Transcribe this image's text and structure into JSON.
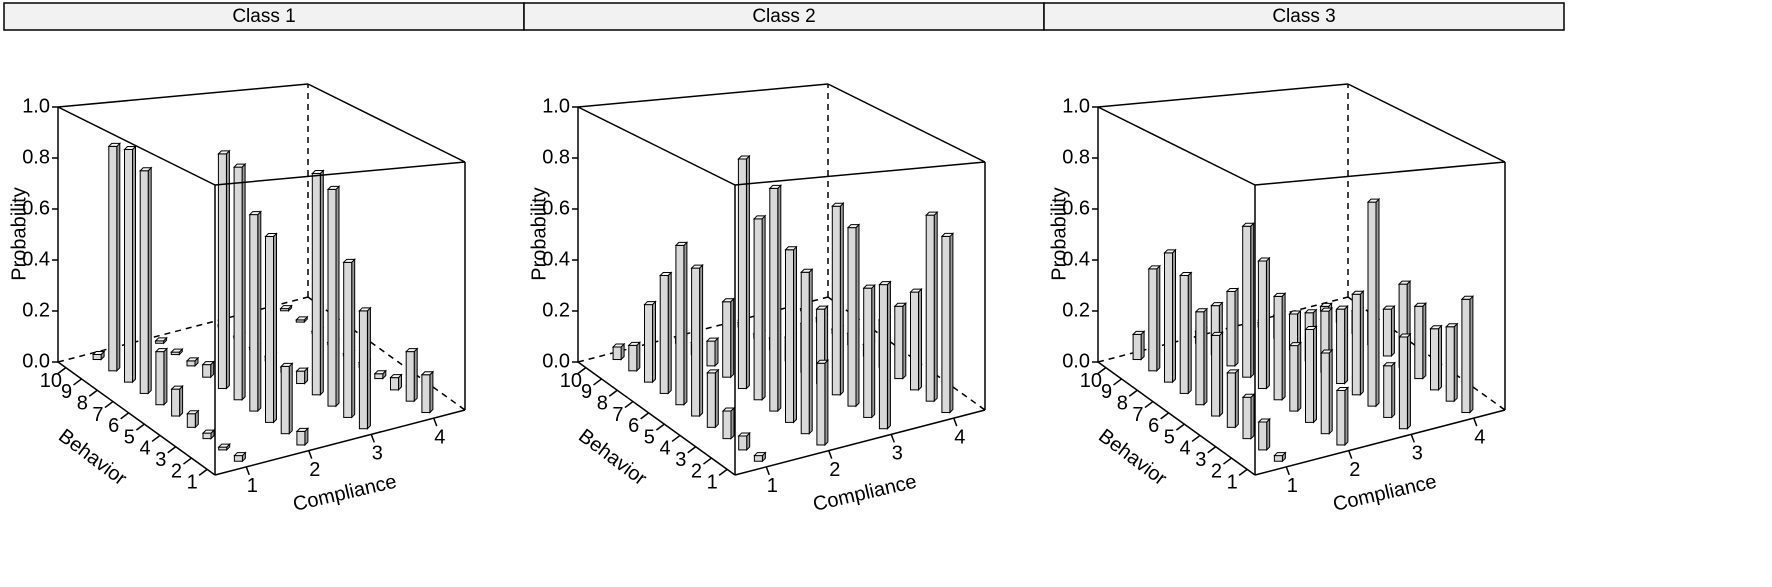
{
  "chart_data": [
    {
      "type": "bar3d",
      "title": "Class 1",
      "x_label": "Compliance",
      "y_label": "Behavior",
      "z_label": "Probability",
      "x_categories": [
        1,
        2,
        3,
        4
      ],
      "y_categories": [
        1,
        2,
        3,
        4,
        5,
        6,
        7,
        8,
        9,
        10
      ],
      "zlim": [
        0,
        1
      ],
      "zticks": [
        {
          "value": 0,
          "label": "0.0"
        },
        0.2,
        0.4,
        0.6,
        0.8,
        {
          "value": 1,
          "label": "1.0"
        }
      ],
      "color": "#d9d9d9",
      "values": [
        [
          0.02,
          0.05,
          0.45,
          0.15
        ],
        [
          0.01,
          0.25,
          0.6,
          0.2
        ],
        [
          0.02,
          0.7,
          0.85,
          0.05
        ],
        [
          0.05,
          0.75,
          0.88,
          0.02
        ],
        [
          0.1,
          0.9,
          0.05,
          0.02
        ],
        [
          0.2,
          0.92,
          0.02,
          0.01
        ],
        [
          0.85,
          0.05,
          0.02,
          0.01
        ],
        [
          0.9,
          0.02,
          0.01,
          0.01
        ],
        [
          0.88,
          0.01,
          0.01,
          0.01
        ],
        [
          0.02,
          0.01,
          0.01,
          0.01
        ]
      ]
    },
    {
      "type": "bar3d",
      "title": "Class 2",
      "x_label": "Compliance",
      "y_label": "Behavior",
      "z_label": "Probability",
      "x_categories": [
        1,
        2,
        3,
        4
      ],
      "y_categories": [
        1,
        2,
        3,
        4,
        5,
        6,
        7,
        8,
        9,
        10
      ],
      "zlim": [
        0,
        1
      ],
      "zticks": [
        {
          "value": 0,
          "label": "0.0"
        },
        0.2,
        0.4,
        0.6,
        0.8,
        {
          "value": 1,
          "label": "1.0"
        }
      ],
      "color": "#d9d9d9",
      "values": [
        [
          0.02,
          0.3,
          0.55,
          0.7
        ],
        [
          0.05,
          0.6,
          0.5,
          0.75
        ],
        [
          0.1,
          0.65,
          0.7,
          0.4
        ],
        [
          0.2,
          0.85,
          0.75,
          0.3
        ],
        [
          0.55,
          0.7,
          0.3,
          0.2
        ],
        [
          0.6,
          0.9,
          0.2,
          0.05
        ],
        [
          0.45,
          0.3,
          0.1,
          0.05
        ],
        [
          0.3,
          0.1,
          0.05,
          0.02
        ],
        [
          0.1,
          0.05,
          0.02,
          0.02
        ],
        [
          0.05,
          0.02,
          0.02,
          0.01
        ]
      ]
    },
    {
      "type": "bar3d",
      "title": "Class 3",
      "x_label": "Compliance",
      "y_label": "Behavior",
      "z_label": "Probability",
      "x_categories": [
        1,
        2,
        3,
        4
      ],
      "y_categories": [
        1,
        2,
        3,
        4,
        5,
        6,
        7,
        8,
        9,
        10
      ],
      "zlim": [
        0,
        1
      ],
      "zticks": [
        {
          "value": 0,
          "label": "0.0"
        },
        0.2,
        0.4,
        0.6,
        0.8,
        {
          "value": 1,
          "label": "1.0"
        }
      ],
      "color": "#d9d9d9",
      "values": [
        [
          0.02,
          0.2,
          0.35,
          0.45
        ],
        [
          0.1,
          0.3,
          0.2,
          0.3
        ],
        [
          0.15,
          0.35,
          0.8,
          0.25
        ],
        [
          0.2,
          0.25,
          0.4,
          0.3
        ],
        [
          0.3,
          0.4,
          0.3,
          0.35
        ],
        [
          0.35,
          0.5,
          0.25,
          0.2
        ],
        [
          0.45,
          0.6,
          0.2,
          0.15
        ],
        [
          0.5,
          0.3,
          0.15,
          0.1
        ],
        [
          0.4,
          0.2,
          0.1,
          0.05
        ],
        [
          0.1,
          0.05,
          0.02,
          0.02
        ]
      ]
    }
  ]
}
